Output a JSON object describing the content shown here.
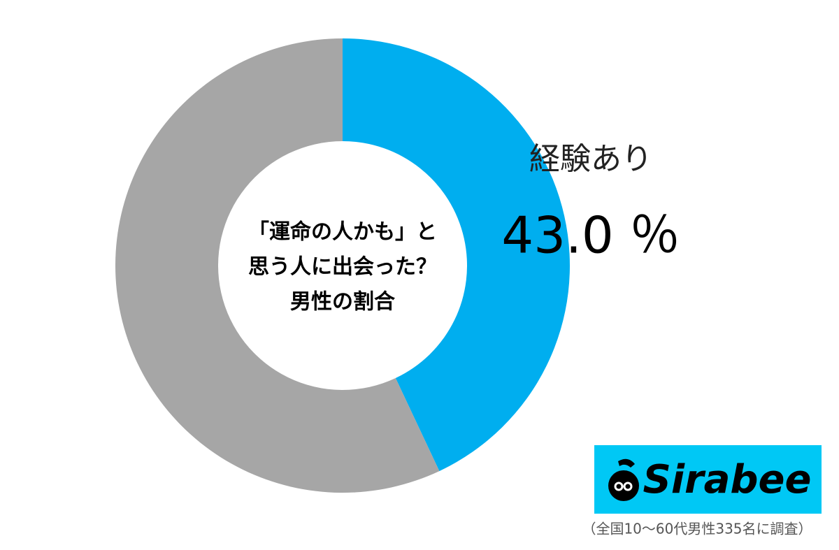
{
  "chart_data": {
    "type": "pie",
    "center_text": [
      "「運命の人かも」と",
      "思う人に出会った？",
      "男性の割合"
    ],
    "categories": [
      "経験あり",
      null
    ],
    "values": [
      43.0,
      57.0
    ],
    "value_labels": [
      "43.0 ％",
      null
    ],
    "colors": [
      "#00aeef",
      "#a6a6a6"
    ],
    "logo": "Sirabee",
    "note": "（全国10～60代男性335名に調査）"
  }
}
